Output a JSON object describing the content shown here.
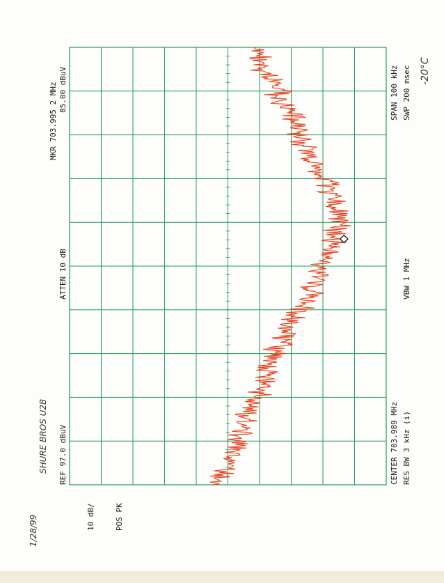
{
  "colors": {
    "grid": "#1f9a55",
    "trace": "#e8401c",
    "marker": "#111111",
    "text": "#1a1a1a"
  },
  "instrument": {
    "ref_label": "REF 97.0 dBuV",
    "scale_label": "10 dB/",
    "detector_label": "POS PK",
    "atten_label": "ATTEN 10 dB",
    "marker_label": "MKR 703.995 2 MHz",
    "marker_value": "85.00 dBuV",
    "center_label": "CENTER 703.989 MHz",
    "res_bw_label": "RES BW 3 kHz (i)",
    "vbw_label": "VBW 1 MHz",
    "span_label": "SPAN 100 kHz",
    "sweep_label": "SWP 200 msec"
  },
  "handwriting": {
    "date": "1/28/99",
    "device": "SHURE BROS  U2B",
    "temperature": "-20°C"
  },
  "chart_data": {
    "type": "line",
    "title": "",
    "xlabel": "",
    "ylabel": "",
    "x_unit": "MHz",
    "y_unit": "dBuV",
    "xlim": [
      703.939,
      704.039
    ],
    "ylim": [
      7.0,
      97.0
    ],
    "grid": true,
    "marker": {
      "x": 703.9952,
      "y": 85.0
    },
    "series": [
      {
        "x": [
          703.939,
          703.944,
          703.949,
          703.954,
          703.959,
          703.964,
          703.969,
          703.974,
          703.979,
          703.984,
          703.989,
          703.994,
          703.999,
          704.004,
          704.009,
          704.014,
          704.019,
          704.024,
          704.029,
          704.034,
          704.039
        ],
        "values": [
          47.0,
          53.0,
          55.0,
          57.0,
          60.0,
          63.0,
          65.0,
          69.0,
          73.0,
          76.0,
          79.0,
          81.5,
          83.0,
          82.0,
          79.5,
          76.0,
          73.0,
          70.0,
          66.0,
          62.0,
          60.0
        ]
      }
    ]
  }
}
